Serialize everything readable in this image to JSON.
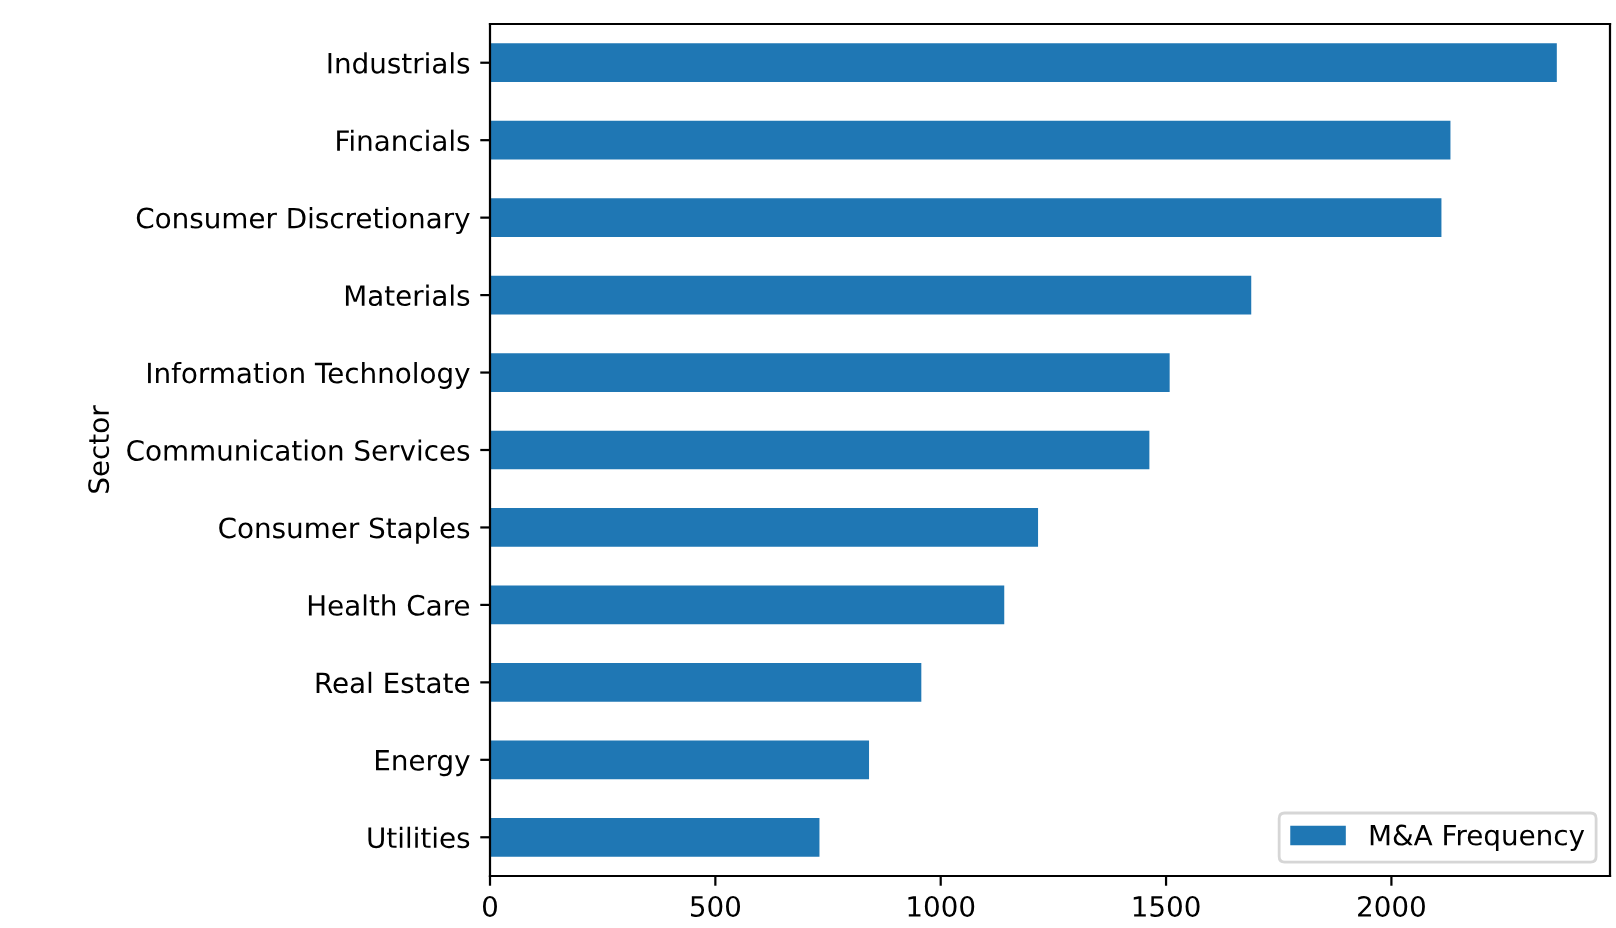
{
  "chart_data": {
    "type": "bar",
    "orientation": "horizontal",
    "ylabel": "Sector",
    "categories": [
      "Industrials",
      "Financials",
      "Consumer Discretionary",
      "Materials",
      "Information Technology",
      "Communication Services",
      "Consumer Staples",
      "Health Care",
      "Real Estate",
      "Energy",
      "Utilities"
    ],
    "series": [
      {
        "name": "M&A Frequency",
        "color": "#1f77b4",
        "values": [
          2367,
          2131,
          2111,
          1689,
          1508,
          1463,
          1216,
          1141,
          957,
          841,
          731
        ]
      }
    ],
    "xlim": [
      0,
      2485
    ],
    "xticks": [
      0,
      500,
      1000,
      1500,
      2000
    ],
    "legend": "bottom right",
    "grid": false
  }
}
